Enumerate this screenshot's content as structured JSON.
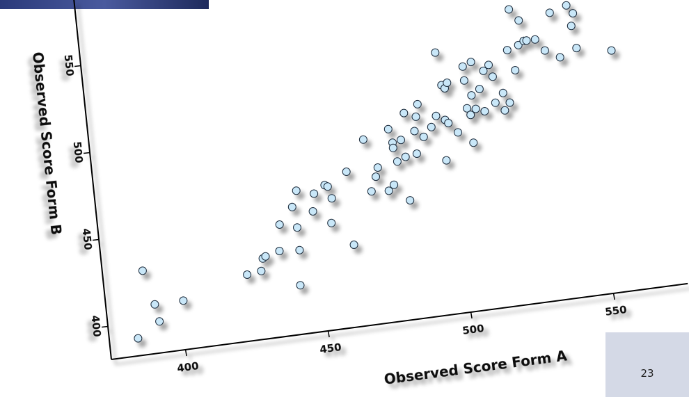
{
  "chart_data": {
    "type": "scatter",
    "x_label": "Observed Score Form A",
    "y_label": "Observed Score Form B",
    "color": "#c9e7f8",
    "edge_color": "#1a2a3a",
    "xlim": [
      374,
      576
    ],
    "ylim": [
      381,
      588
    ],
    "xticks": [
      400,
      450,
      500,
      550
    ],
    "yticks": [
      400,
      450,
      500,
      550
    ],
    "x": [
      384,
      388,
      391,
      392,
      401,
      424,
      429,
      430,
      431,
      436,
      437,
      442,
      443,
      444,
      443,
      442,
      449,
      450,
      455,
      456,
      454,
      455,
      462,
      462,
      469,
      470,
      473,
      472,
      478,
      476,
      478,
      479,
      479,
      480,
      482,
      484,
      483,
      483,
      488,
      487,
      487,
      489,
      490,
      493,
      495,
      497,
      498,
      498,
      497,
      499,
      500,
      499,
      502,
      506,
      506,
      506,
      508,
      509,
      507,
      507,
      509,
      511,
      513,
      512,
      515,
      516,
      516,
      519,
      519,
      522,
      521,
      524,
      524,
      526,
      527,
      528,
      529,
      532,
      535,
      538,
      540,
      544,
      545,
      546,
      546,
      558
    ],
    "y": [
      391,
      429,
      409,
      399,
      409,
      419,
      420,
      427,
      428,
      430,
      445,
      454,
      442,
      463,
      429,
      409,
      450,
      460,
      442,
      456,
      464,
      463,
      470,
      428,
      487,
      457,
      470,
      465,
      491,
      456,
      459,
      483,
      480,
      472,
      484,
      499,
      474,
      449,
      496,
      488,
      475,
      503,
      484,
      489,
      495,
      531,
      512,
      492,
      469,
      510,
      513,
      490,
      484,
      521,
      513,
      497,
      504,
      523,
      493,
      477,
      496,
      507,
      517,
      494,
      520,
      513,
      498,
      503,
      493,
      527,
      497,
      550,
      515,
      529,
      543,
      531,
      531,
      531,
      524,
      545,
      519,
      548,
      536,
      543,
      523,
      519
    ]
  },
  "page_number": "23"
}
